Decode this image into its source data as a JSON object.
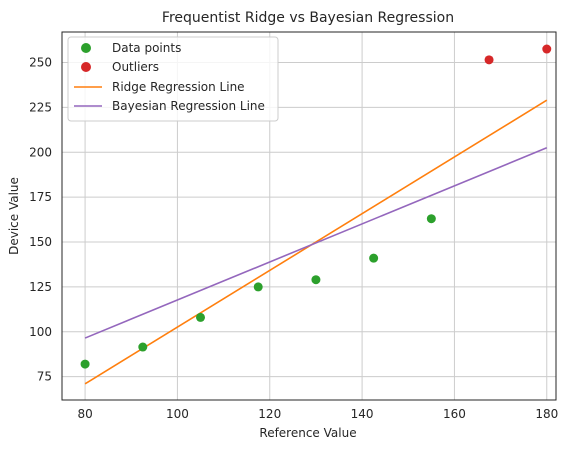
{
  "chart_data": {
    "type": "scatter",
    "title": "Frequentist Ridge vs Bayesian Regression",
    "xlabel": "Reference Value",
    "ylabel": "Device Value",
    "xlim": [
      75,
      182
    ],
    "ylim": [
      62,
      267
    ],
    "xticks": [
      80,
      100,
      120,
      140,
      160,
      180
    ],
    "yticks": [
      75,
      100,
      125,
      150,
      175,
      200,
      225,
      250
    ],
    "grid": true,
    "legend_position": "top-left",
    "colors": {
      "data_points": "#2ca02c",
      "outliers": "#d62728",
      "ridge": "#ff7f0e",
      "bayesian": "#9467bd",
      "grid": "#cccccc",
      "spine": "#262626"
    },
    "series": [
      {
        "name": "Data points",
        "kind": "scatter",
        "x": [
          80,
          92.5,
          105,
          117.5,
          130,
          142.5,
          155
        ],
        "y": [
          82,
          91.5,
          108,
          125,
          129,
          141,
          163
        ]
      },
      {
        "name": "Outliers",
        "kind": "scatter",
        "x": [
          167.5,
          180
        ],
        "y": [
          251.5,
          257.5
        ]
      },
      {
        "name": "Ridge Regression Line",
        "kind": "line",
        "x": [
          80,
          180
        ],
        "y": [
          71,
          229
        ]
      },
      {
        "name": "Bayesian Regression Line",
        "kind": "line",
        "x": [
          80,
          180
        ],
        "y": [
          96.5,
          202.5
        ]
      }
    ]
  }
}
